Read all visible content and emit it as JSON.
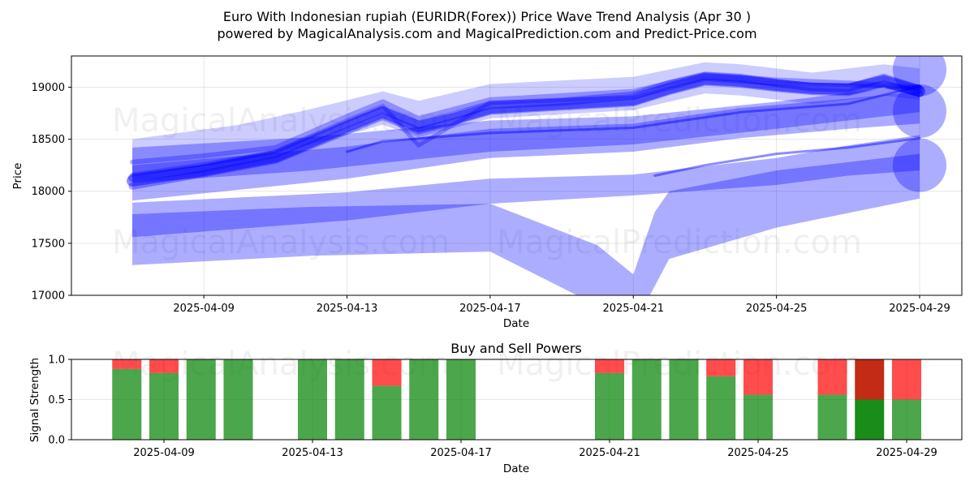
{
  "title_line1": "Euro With Indonesian rupiah (EURIDR(Forex)) Price Wave Trend Analysis (Apr 30 )",
  "title_line2": "powered by MagicalAnalysis.com and MagicalPrediction.com and Predict-Price.com",
  "watermarks": [
    "MagicalAnalysis.com",
    "MagicalPrediction.com"
  ],
  "colors": {
    "wave": "#0000ff",
    "buy": "#008000",
    "sell": "#ff0000",
    "grid": "#b0b0b0"
  },
  "chart_data": [
    {
      "type": "line",
      "xlabel": "Date",
      "ylabel": "Price",
      "ylim": [
        17000,
        19300
      ],
      "xlim": [
        "2025-04-05",
        "2025-04-30"
      ],
      "x_ticks": [
        "2025-04-09",
        "2025-04-13",
        "2025-04-17",
        "2025-04-21",
        "2025-04-25",
        "2025-04-29"
      ],
      "y_ticks": [
        17000,
        17500,
        18000,
        18500,
        19000
      ],
      "grid": true,
      "bands": [
        {
          "upper": [
            [
              "2025-04-07",
              18420
            ],
            [
              "2025-04-12",
              18520
            ],
            [
              "2025-04-17",
              18680
            ],
            [
              "2025-04-21",
              18720
            ],
            [
              "2025-04-25",
              18860
            ],
            [
              "2025-04-29",
              19030
            ]
          ],
          "lower": [
            [
              "2025-04-07",
              18080
            ],
            [
              "2025-04-12",
              18200
            ],
            [
              "2025-04-17",
              18380
            ],
            [
              "2025-04-21",
              18450
            ],
            [
              "2025-04-25",
              18600
            ],
            [
              "2025-04-29",
              18760
            ]
          ]
        },
        {
          "upper": [
            [
              "2025-04-07",
              18250
            ],
            [
              "2025-04-13",
              18430
            ],
            [
              "2025-04-17",
              18600
            ],
            [
              "2025-04-21",
              18650
            ],
            [
              "2025-04-24",
              18800
            ],
            [
              "2025-04-27",
              18890
            ],
            [
              "2025-04-29",
              18960
            ]
          ],
          "lower": [
            [
              "2025-04-07",
              17910
            ],
            [
              "2025-04-13",
              18120
            ],
            [
              "2025-04-17",
              18320
            ],
            [
              "2025-04-21",
              18380
            ],
            [
              "2025-04-24",
              18510
            ],
            [
              "2025-04-27",
              18600
            ],
            [
              "2025-04-29",
              18650
            ]
          ]
        },
        {
          "upper": [
            [
              "2025-04-07",
              17890
            ],
            [
              "2025-04-13",
              17990
            ],
            [
              "2025-04-17",
              18120
            ],
            [
              "2025-04-21",
              18160
            ],
            [
              "2025-04-25",
              18320
            ],
            [
              "2025-04-27",
              18440
            ],
            [
              "2025-04-29",
              18540
            ]
          ],
          "lower": [
            [
              "2025-04-07",
              17560
            ],
            [
              "2025-04-13",
              17720
            ],
            [
              "2025-04-17",
              17880
            ],
            [
              "2025-04-21",
              17960
            ],
            [
              "2025-04-25",
              18060
            ],
            [
              "2025-04-27",
              18150
            ],
            [
              "2025-04-29",
              18200
            ]
          ]
        },
        {
          "upper": [
            [
              "2025-04-07",
              17780
            ],
            [
              "2025-04-12",
              17850
            ],
            [
              "2025-04-17",
              17880
            ],
            [
              "2025-04-20",
              17480
            ],
            [
              "2025-04-21",
              17200
            ],
            [
              "2025-04-21.6",
              17800
            ],
            [
              "2025-04-22",
              18000
            ],
            [
              "2025-04-25",
              18200
            ],
            [
              "2025-04-29",
              18360
            ]
          ],
          "lower": [
            [
              "2025-04-07",
              17290
            ],
            [
              "2025-04-12",
              17380
            ],
            [
              "2025-04-17",
              17420
            ],
            [
              "2025-04-20",
              16900
            ],
            [
              "2025-04-21",
              16700
            ],
            [
              "2025-04-22",
              17350
            ],
            [
              "2025-04-25",
              17650
            ],
            [
              "2025-04-29",
              17930
            ]
          ]
        },
        {
          "upper": [
            [
              "2025-04-07",
              18500
            ],
            [
              "2025-04-10",
              18640
            ],
            [
              "2025-04-12",
              18790
            ],
            [
              "2025-04-14",
              18960
            ],
            [
              "2025-04-15",
              18870
            ],
            [
              "2025-04-17",
              19030
            ],
            [
              "2025-04-21",
              19100
            ],
            [
              "2025-04-23",
              19240
            ],
            [
              "2025-04-24",
              19220
            ],
            [
              "2025-04-26",
              19140
            ],
            [
              "2025-04-28",
              19220
            ],
            [
              "2025-04-29",
              19180
            ]
          ],
          "lower": [
            [
              "2025-04-07",
              18150
            ],
            [
              "2025-04-10",
              18290
            ],
            [
              "2025-04-12",
              18450
            ],
            [
              "2025-04-14",
              18640
            ],
            [
              "2025-04-15",
              18520
            ],
            [
              "2025-04-17",
              18700
            ],
            [
              "2025-04-21",
              18780
            ],
            [
              "2025-04-23",
              18940
            ],
            [
              "2025-04-24",
              18920
            ],
            [
              "2025-04-26",
              18840
            ],
            [
              "2025-04-28",
              18920
            ],
            [
              "2025-04-29",
              18880
            ]
          ]
        }
      ],
      "series": [
        {
          "values": [
            [
              "2025-04-07",
              18100
            ],
            [
              "2025-04-09",
              18200
            ],
            [
              "2025-04-11",
              18330
            ],
            [
              "2025-04-13",
              18620
            ],
            [
              "2025-04-14",
              18760
            ],
            [
              "2025-04-15",
              18620
            ],
            [
              "2025-04-16",
              18700
            ],
            [
              "2025-04-17",
              18800
            ],
            [
              "2025-04-19",
              18840
            ],
            [
              "2025-04-21",
              18880
            ],
            [
              "2025-04-22",
              18990
            ],
            [
              "2025-04-23",
              19080
            ],
            [
              "2025-04-24",
              19060
            ],
            [
              "2025-04-25",
              19020
            ],
            [
              "2025-04-26",
              18990
            ],
            [
              "2025-04-27",
              18980
            ],
            [
              "2025-04-28",
              19060
            ],
            [
              "2025-04-29",
              18960
            ]
          ]
        },
        {
          "values": [
            [
              "2025-04-07",
              18130
            ],
            [
              "2025-04-09",
              18220
            ],
            [
              "2025-04-11",
              18360
            ],
            [
              "2025-04-13",
              18650
            ],
            [
              "2025-04-14",
              18790
            ],
            [
              "2025-04-15",
              18640
            ],
            [
              "2025-04-16",
              18730
            ],
            [
              "2025-04-17",
              18830
            ],
            [
              "2025-04-19",
              18860
            ],
            [
              "2025-04-21",
              18920
            ],
            [
              "2025-04-22",
              19030
            ],
            [
              "2025-04-23",
              19110
            ],
            [
              "2025-04-24",
              19090
            ],
            [
              "2025-04-25",
              19040
            ],
            [
              "2025-04-26",
              19000
            ],
            [
              "2025-04-27",
              18990
            ],
            [
              "2025-04-28",
              19090
            ],
            [
              "2025-04-29",
              18980
            ]
          ]
        },
        {
          "values": [
            [
              "2025-04-07",
              18050
            ],
            [
              "2025-04-09",
              18170
            ],
            [
              "2025-04-11",
              18300
            ],
            [
              "2025-04-13",
              18580
            ],
            [
              "2025-04-14",
              18720
            ],
            [
              "2025-04-15",
              18580
            ],
            [
              "2025-04-16",
              18670
            ],
            [
              "2025-04-17",
              18770
            ],
            [
              "2025-04-19",
              18810
            ],
            [
              "2025-04-21",
              18850
            ],
            [
              "2025-04-22",
              18960
            ],
            [
              "2025-04-23",
              19050
            ],
            [
              "2025-04-24",
              19030
            ],
            [
              "2025-04-25",
              18990
            ],
            [
              "2025-04-26",
              18960
            ],
            [
              "2025-04-27",
              18950
            ],
            [
              "2025-04-28",
              19030
            ],
            [
              "2025-04-29",
              18940
            ]
          ]
        },
        {
          "values": [
            [
              "2025-04-07",
              18280
            ],
            [
              "2025-04-09",
              18340
            ],
            [
              "2025-04-11",
              18420
            ],
            [
              "2025-04-13",
              18720
            ],
            [
              "2025-04-14",
              18860
            ],
            [
              "2025-04-15",
              18700
            ],
            [
              "2025-04-17",
              18880
            ],
            [
              "2025-04-21",
              18960
            ],
            [
              "2025-04-23",
              19120
            ],
            [
              "2025-04-25",
              19070
            ],
            [
              "2025-04-27",
              19040
            ],
            [
              "2025-04-29",
              19000
            ]
          ]
        },
        {
          "values": [
            [
              "2025-04-07",
              18160
            ],
            [
              "2025-04-09",
              18260
            ],
            [
              "2025-04-11",
              18380
            ],
            [
              "2025-04-13",
              18680
            ],
            [
              "2025-04-14",
              18820
            ],
            [
              "2025-04-15",
              18440
            ],
            [
              "2025-04-17",
              18850
            ],
            [
              "2025-04-21",
              18900
            ],
            [
              "2025-04-23",
              19080
            ],
            [
              "2025-04-25",
              19030
            ],
            [
              "2025-04-27",
              19020
            ],
            [
              "2025-04-29",
              18990
            ]
          ]
        },
        {
          "values": [
            [
              "2025-04-13",
              18380
            ],
            [
              "2025-04-14",
              18480
            ],
            [
              "2025-04-17",
              18560
            ],
            [
              "2025-04-21",
              18610
            ],
            [
              "2025-04-24",
              18760
            ],
            [
              "2025-04-27",
              18840
            ],
            [
              "2025-04-29",
              19010
            ]
          ]
        },
        {
          "values": [
            [
              "2025-04-21.6",
              18150
            ],
            [
              "2025-04-23",
              18250
            ],
            [
              "2025-04-25",
              18360
            ],
            [
              "2025-04-27",
              18420
            ],
            [
              "2025-04-29",
              18510
            ]
          ]
        }
      ],
      "endpoint_circles": [
        {
          "x": "2025-04-29",
          "y": 19170
        },
        {
          "x": "2025-04-29",
          "y": 18770
        },
        {
          "x": "2025-04-29",
          "y": 18250
        }
      ]
    },
    {
      "type": "bar",
      "title": "Buy and Sell Powers",
      "xlabel": "Date",
      "ylabel": "Signal Strength",
      "ylim": [
        0,
        1
      ],
      "y_ticks": [
        0.0,
        0.5,
        1.0
      ],
      "x_ticks": [
        "2025-04-09",
        "2025-04-13",
        "2025-04-17",
        "2025-04-21",
        "2025-04-25",
        "2025-04-29"
      ],
      "grid": true,
      "categories": [
        "2025-04-08",
        "2025-04-09",
        "2025-04-10",
        "2025-04-11",
        "2025-04-13",
        "2025-04-14",
        "2025-04-15",
        "2025-04-16",
        "2025-04-17",
        "2025-04-21",
        "2025-04-22",
        "2025-04-23",
        "2025-04-24",
        "2025-04-25",
        "2025-04-27",
        "2025-04-28",
        "2025-04-29"
      ],
      "series": [
        {
          "values": [
            0.88,
            0.83,
            1.0,
            1.0,
            1.0,
            1.0,
            0.67,
            1.0,
            1.0,
            0.83,
            1.0,
            1.0,
            0.79,
            0.56,
            0.56,
            0.5,
            0.5
          ]
        },
        {
          "values": [
            0.12,
            0.17,
            0.0,
            0.0,
            0.0,
            0.0,
            0.33,
            0.0,
            0.0,
            0.17,
            0.0,
            0.0,
            0.21,
            0.44,
            0.44,
            0.5,
            0.5
          ]
        }
      ],
      "highlight_categories": [
        "2025-04-28"
      ]
    }
  ]
}
